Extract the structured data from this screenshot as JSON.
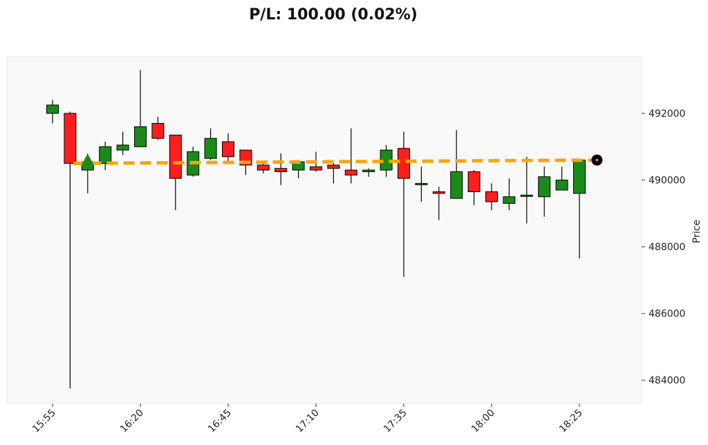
{
  "chart_data": {
    "type": "candlestick",
    "title": "P/L: 100.00 (0.02%)",
    "ylabel": "Price",
    "xlabel": "",
    "ylim": [
      483300,
      493700
    ],
    "y_ticks": [
      484000,
      486000,
      488000,
      490000,
      492000
    ],
    "y_tick_labels": [
      "484000",
      "486000",
      "488000",
      "490000",
      "492000"
    ],
    "x_tick_labels": [
      "15:55",
      "16:20",
      "16:45",
      "17:10",
      "17:35",
      "18:00",
      "18:25"
    ],
    "x_tick_index": [
      0,
      5,
      10,
      15,
      20,
      25,
      30
    ],
    "grid": false,
    "candles": [
      {
        "open": 492000,
        "high": 492400,
        "low": 491700,
        "close": 492250
      },
      {
        "open": 492000,
        "high": 492050,
        "low": 483750,
        "close": 490500
      },
      {
        "open": 490300,
        "high": 490800,
        "low": 489600,
        "close": 490550
      },
      {
        "open": 490500,
        "high": 491150,
        "low": 490300,
        "close": 491000
      },
      {
        "open": 490900,
        "high": 491450,
        "low": 490750,
        "close": 491050
      },
      {
        "open": 491000,
        "high": 493300,
        "low": 491000,
        "close": 491600
      },
      {
        "open": 491700,
        "high": 491900,
        "low": 491200,
        "close": 491250
      },
      {
        "open": 491350,
        "high": 491350,
        "low": 489100,
        "close": 490050
      },
      {
        "open": 490150,
        "high": 491000,
        "low": 490100,
        "close": 490850
      },
      {
        "open": 490650,
        "high": 491550,
        "low": 490600,
        "close": 491250
      },
      {
        "open": 491150,
        "high": 491400,
        "low": 490550,
        "close": 490700
      },
      {
        "open": 490900,
        "high": 490900,
        "low": 490150,
        "close": 490450
      },
      {
        "open": 490450,
        "high": 490500,
        "low": 490200,
        "close": 490300
      },
      {
        "open": 490350,
        "high": 490800,
        "low": 489850,
        "close": 490250
      },
      {
        "open": 490300,
        "high": 490600,
        "low": 490050,
        "close": 490550
      },
      {
        "open": 490400,
        "high": 490850,
        "low": 490250,
        "close": 490300
      },
      {
        "open": 490450,
        "high": 490500,
        "low": 489900,
        "close": 490350
      },
      {
        "open": 490300,
        "high": 491550,
        "low": 489900,
        "close": 490150
      },
      {
        "open": 490250,
        "high": 490350,
        "low": 490100,
        "close": 490300
      },
      {
        "open": 490300,
        "high": 491050,
        "low": 490100,
        "close": 490900
      },
      {
        "open": 490950,
        "high": 491450,
        "low": 487100,
        "close": 490050
      },
      {
        "open": 489900,
        "high": 490400,
        "low": 489350,
        "close": 489900
      },
      {
        "open": 489650,
        "high": 489800,
        "low": 488800,
        "close": 489600
      },
      {
        "open": 489450,
        "high": 491500,
        "low": 489450,
        "close": 490250
      },
      {
        "open": 490250,
        "high": 490300,
        "low": 489250,
        "close": 489650
      },
      {
        "open": 489650,
        "high": 489900,
        "low": 489100,
        "close": 489350
      },
      {
        "open": 489300,
        "high": 490050,
        "low": 489100,
        "close": 489500
      },
      {
        "open": 489550,
        "high": 490700,
        "low": 488700,
        "close": 489550
      },
      {
        "open": 489500,
        "high": 490400,
        "low": 488900,
        "close": 490100
      },
      {
        "open": 489700,
        "high": 490400,
        "low": 489700,
        "close": 490000
      },
      {
        "open": 489600,
        "high": 490600,
        "low": 487650,
        "close": 490600
      }
    ],
    "trade_line": {
      "start_index": 1.2,
      "end_index": 31.0,
      "start_price": 490500,
      "end_price": 490600
    },
    "entry_marker": {
      "index": 2.0,
      "price": 490500,
      "shape": "triangle-up"
    },
    "exit_marker": {
      "index": 31.0,
      "price": 490600,
      "shape": "circle"
    },
    "colors": {
      "up": "#1a8a1a",
      "down": "#ff1e1e",
      "wick": "#000000",
      "trade_line": "#ffa500",
      "entry_marker": "#1a8a1a",
      "exit_marker": "#000000",
      "plot_bg": "#f9f9f9",
      "plot_border": "#ececec"
    }
  }
}
